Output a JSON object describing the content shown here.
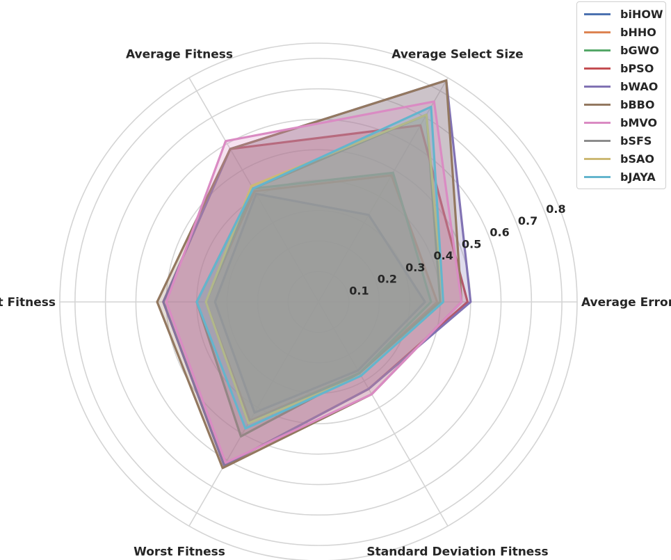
{
  "chart_data": {
    "type": "radar",
    "axes": [
      "Average Error",
      "Average Select Size",
      "Average Fitness",
      "Best Fitness",
      "Worst Fitness",
      "Standard Deviation Fitness"
    ],
    "rlim": [
      0,
      0.85
    ],
    "rticks": [
      "0.1",
      "0.2",
      "0.3",
      "0.4",
      "0.5",
      "0.6",
      "0.7",
      "0.8"
    ],
    "grid": true,
    "legend_position": "top-right",
    "series": [
      {
        "name": "biHOW",
        "color": "#4c72b0",
        "values": [
          0.35,
          0.33,
          0.41,
          0.34,
          0.42,
          0.26
        ]
      },
      {
        "name": "bHHO",
        "color": "#dd8452",
        "values": [
          0.39,
          0.48,
          0.42,
          0.37,
          0.45,
          0.27
        ]
      },
      {
        "name": "bGWO",
        "color": "#55a868",
        "values": [
          0.4,
          0.71,
          0.43,
          0.4,
          0.51,
          0.27
        ]
      },
      {
        "name": "bPSO",
        "color": "#c44e52",
        "values": [
          0.49,
          0.67,
          0.58,
          0.51,
          0.62,
          0.33
        ]
      },
      {
        "name": "bWAO",
        "color": "#8172b3",
        "values": [
          0.5,
          0.84,
          0.58,
          0.51,
          0.62,
          0.33
        ]
      },
      {
        "name": "bBBO",
        "color": "#937860",
        "values": [
          0.47,
          0.84,
          0.58,
          0.53,
          0.63,
          0.35
        ]
      },
      {
        "name": "bMVO",
        "color": "#da8bc3",
        "values": [
          0.47,
          0.76,
          0.61,
          0.5,
          0.61,
          0.35
        ]
      },
      {
        "name": "bSFS",
        "color": "#8c8c8c",
        "values": [
          0.37,
          0.49,
          0.43,
          0.37,
          0.46,
          0.27
        ]
      },
      {
        "name": "bSAO",
        "color": "#ccb974",
        "values": [
          0.41,
          0.71,
          0.44,
          0.37,
          0.46,
          0.28
        ]
      },
      {
        "name": "bJAYA",
        "color": "#64b5cd",
        "values": [
          0.41,
          0.74,
          0.43,
          0.4,
          0.48,
          0.28
        ]
      }
    ]
  }
}
